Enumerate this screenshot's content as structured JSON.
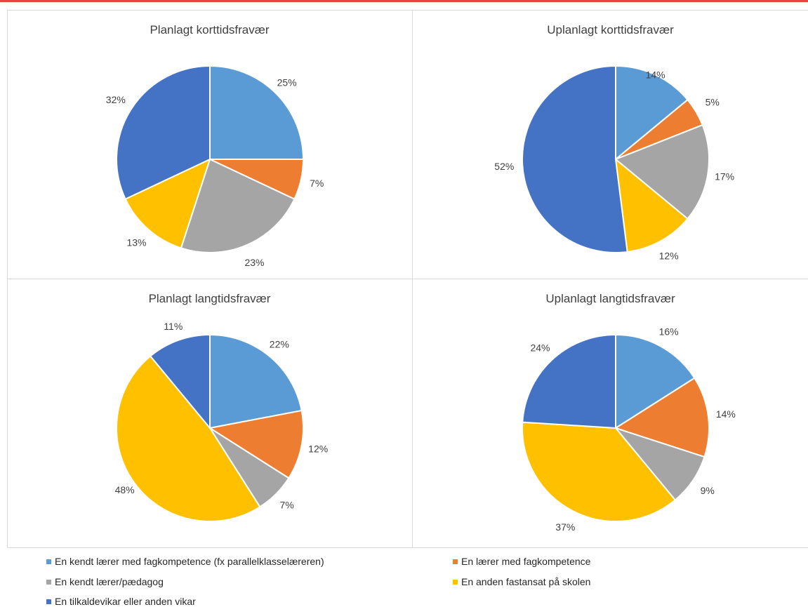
{
  "colors": {
    "top_rule": "#e8453c",
    "panel_border": "#d9d9d9"
  },
  "categories": [
    {
      "label": "En kendt lærer med fagkompetence (fx parallelklasselæreren)",
      "color": "#5b9bd5"
    },
    {
      "label": "En lærer med fagkompetence",
      "color": "#ed7d31"
    },
    {
      "label": "En kendt lærer/pædagog",
      "color": "#a5a5a5"
    },
    {
      "label": "En anden fastansat på skolen",
      "color": "#ffc000"
    },
    {
      "label": "En tilkaldevikar eller anden vikar",
      "color": "#4472c4"
    }
  ],
  "chart_data": [
    {
      "type": "pie",
      "title": "Planlagt korttidsfravær",
      "categories": [
        "En kendt lærer med fagkompetence (fx parallelklasselæreren)",
        "En lærer med fagkompetence",
        "En kendt lærer/pædagog",
        "En anden fastansat på skolen",
        "En tilkaldevikar eller anden vikar"
      ],
      "values": [
        25,
        7,
        23,
        13,
        32
      ],
      "labels": [
        "25%",
        "7%",
        "23%",
        "13%",
        "32%"
      ],
      "legend": "bottom"
    },
    {
      "type": "pie",
      "title": "Uplanlagt korttidsfravær",
      "categories": [
        "En kendt lærer med fagkompetence (fx parallelklasselæreren)",
        "En lærer med fagkompetence",
        "En kendt lærer/pædagog",
        "En anden fastansat på skolen",
        "En tilkaldevikar eller anden vikar"
      ],
      "values": [
        14,
        5,
        17,
        12,
        52
      ],
      "labels": [
        "14%",
        "5%",
        "17%",
        "12%",
        "52%"
      ],
      "legend": "bottom"
    },
    {
      "type": "pie",
      "title": "Planlagt langtidsfravær",
      "categories": [
        "En kendt lærer med fagkompetence (fx parallelklasselæreren)",
        "En lærer med fagkompetence",
        "En kendt lærer/pædagog",
        "En anden fastansat på skolen",
        "En tilkaldevikar eller anden vikar"
      ],
      "values": [
        22,
        12,
        7,
        48,
        11
      ],
      "labels": [
        "22%",
        "12%",
        "7%",
        "48%",
        "11%"
      ],
      "legend": "bottom"
    },
    {
      "type": "pie",
      "title": "Uplanlagt langtidsfravær",
      "categories": [
        "En kendt lærer med fagkompetence (fx parallelklasselæreren)",
        "En lærer med fagkompetence",
        "En kendt lærer/pædagog",
        "En anden fastansat på skolen",
        "En tilkaldevikar eller anden vikar"
      ],
      "values": [
        16,
        14,
        9,
        37,
        24
      ],
      "labels": [
        "16%",
        "14%",
        "9%",
        "37%",
        "24%"
      ],
      "legend": "bottom"
    }
  ]
}
